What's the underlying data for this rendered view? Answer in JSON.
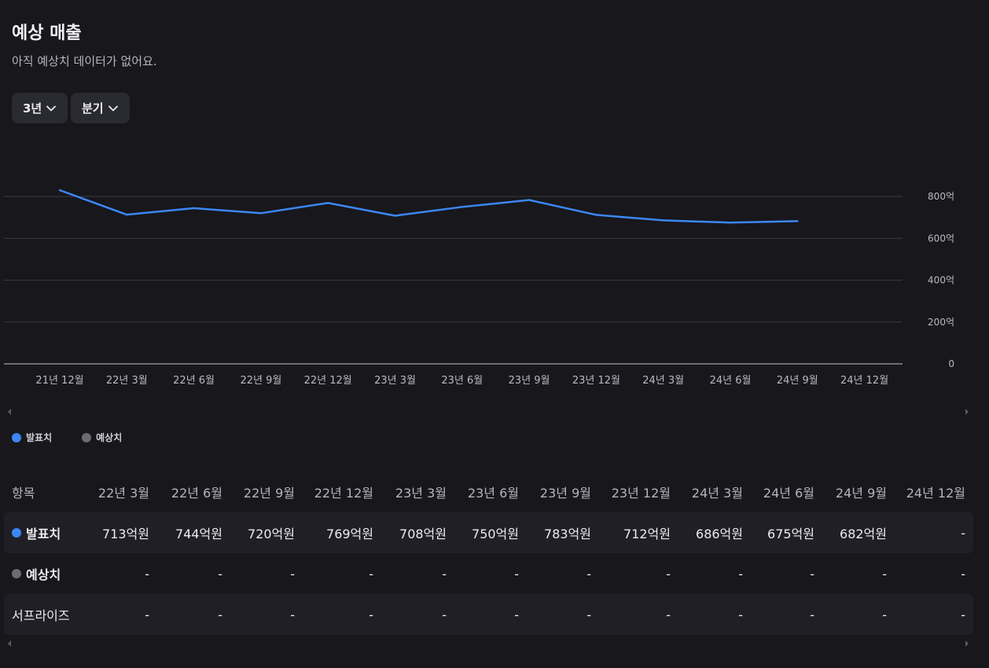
{
  "header": {
    "title": "예상 매출",
    "subtitle": "아직 예상치 데이터가 없어요."
  },
  "filters": {
    "period": "3년",
    "unit": "분기"
  },
  "colors": {
    "actual": "#3b87f5",
    "estimate": "#6b6b73",
    "background": "#17171c"
  },
  "chart_data": {
    "type": "line",
    "categories": [
      "21년 12월",
      "22년 3월",
      "22년 6월",
      "22년 9월",
      "22년 12월",
      "23년 3월",
      "23년 6월",
      "23년 9월",
      "23년 12월",
      "24년 3월",
      "24년 6월",
      "24년 9월",
      "24년 12월"
    ],
    "series": [
      {
        "name": "발표치",
        "values": [
          830,
          713,
          744,
          720,
          769,
          708,
          750,
          783,
          712,
          686,
          675,
          682,
          null
        ]
      },
      {
        "name": "예상치",
        "values": [
          null,
          null,
          null,
          null,
          null,
          null,
          null,
          null,
          null,
          null,
          null,
          null,
          null
        ]
      }
    ],
    "ylim": [
      0,
      800
    ],
    "yticks": [
      "0",
      "200억",
      "400억",
      "600억",
      "800억"
    ],
    "ytick_values": [
      0,
      200,
      400,
      600,
      800
    ],
    "grid": true
  },
  "legend": {
    "actual": "발표치",
    "estimate": "예상치"
  },
  "table": {
    "header_first": "항목",
    "columns": [
      "22년 3월",
      "22년 6월",
      "22년 9월",
      "22년 12월",
      "23년 3월",
      "23년 6월",
      "23년 9월",
      "23년 12월",
      "24년 3월",
      "24년 6월",
      "24년 9월",
      "24년 12월"
    ],
    "rows": [
      {
        "label": "발표치",
        "dot": "actual",
        "values": [
          "713억원",
          "744억원",
          "720억원",
          "769억원",
          "708억원",
          "750억원",
          "783억원",
          "712억원",
          "686억원",
          "675억원",
          "682억원",
          "-"
        ]
      },
      {
        "label": "예상치",
        "dot": "estimate",
        "values": [
          "-",
          "-",
          "-",
          "-",
          "-",
          "-",
          "-",
          "-",
          "-",
          "-",
          "-",
          "-"
        ]
      },
      {
        "label": "서프라이즈",
        "dot": null,
        "values": [
          "-",
          "-",
          "-",
          "-",
          "-",
          "-",
          "-",
          "-",
          "-",
          "-",
          "-",
          "-"
        ]
      }
    ]
  }
}
